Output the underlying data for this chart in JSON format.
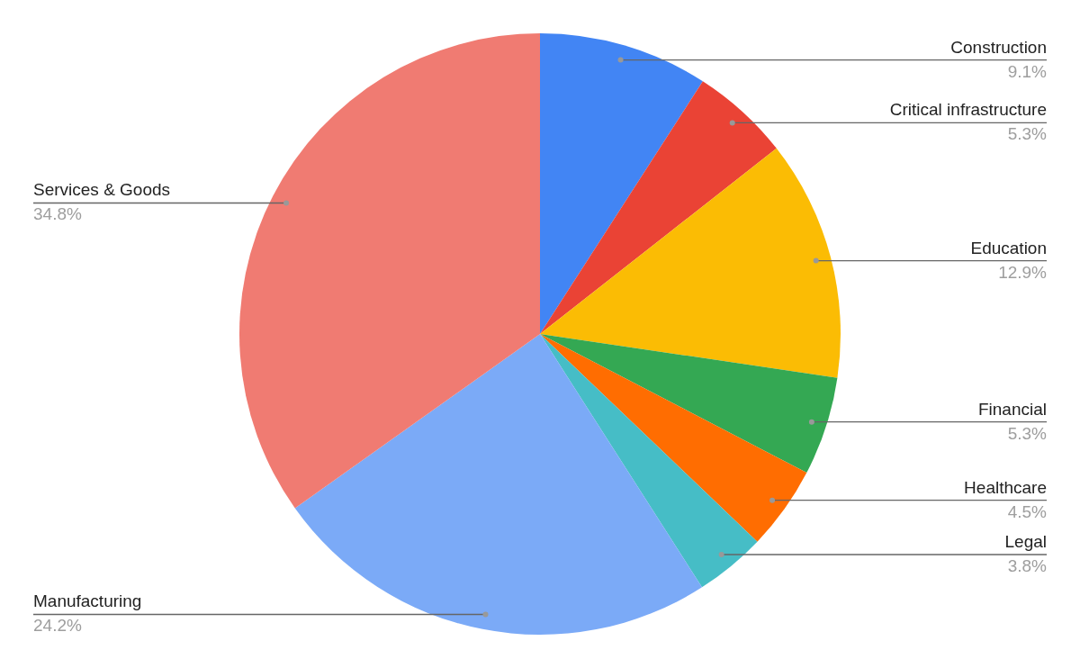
{
  "chart_data": {
    "type": "pie",
    "categories": [
      "Construction",
      "Critical infrastructure",
      "Education",
      "Financial",
      "Healthcare",
      "Legal",
      "Manufacturing",
      "Services & Goods"
    ],
    "values": [
      9.1,
      5.3,
      12.9,
      5.3,
      4.5,
      3.8,
      24.2,
      34.8
    ],
    "value_labels": [
      "9.1%",
      "5.3%",
      "12.9%",
      "5.3%",
      "4.5%",
      "3.8%",
      "24.2%",
      "34.8%"
    ],
    "colors": [
      "#4285f4",
      "#ea4335",
      "#fbbc04",
      "#34a853",
      "#ff6d01",
      "#46bdc6",
      "#7baaf7",
      "#f07b72"
    ]
  }
}
